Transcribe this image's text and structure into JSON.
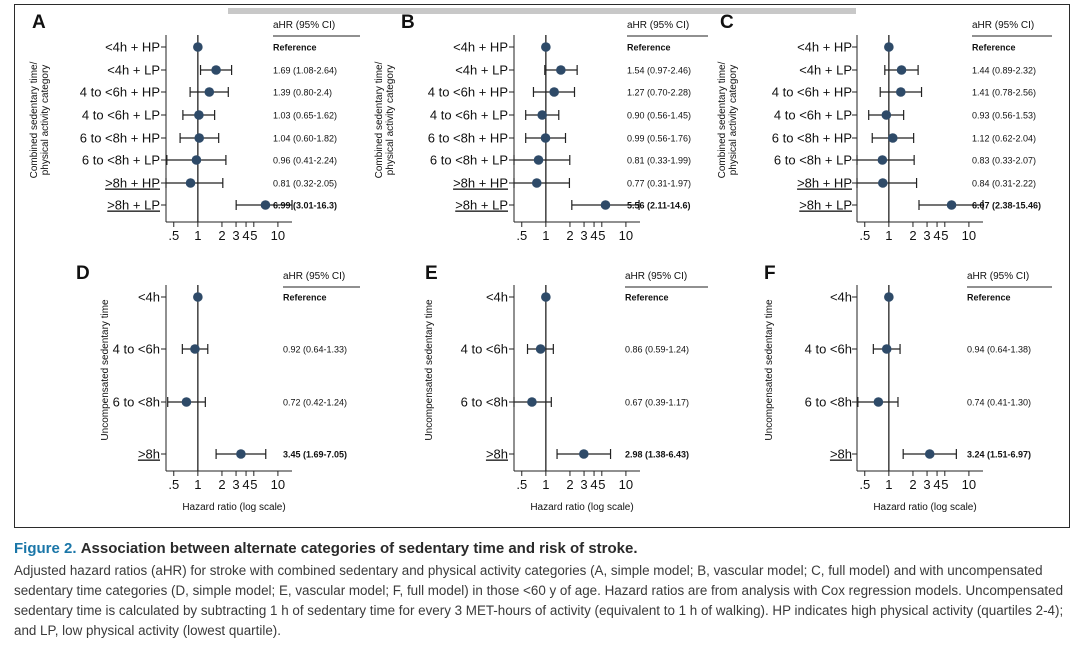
{
  "caption": {
    "figure_number": "Figure 2.",
    "title": "Association between alternate categories of sedentary time and risk of stroke.",
    "body": "Adjusted hazard ratios (aHR) for stroke with combined sedentary and physical activity categories (A, simple model; B, vascular model; C, full model) and with uncompensated sedentary time categories (D, simple model; E, vascular model; F, full model) in those <60 y of age. Hazard ratios are from analysis with Cox regression models. Uncompensated sedentary time is calculated by subtracting 1 h of sedentary time for every 3 MET-hours of activity (equivalent to 1 h of walking). HP indicates high physical activity (quartiles 2-4); and LP, low physical activity (lowest quartile)."
  },
  "colors": {
    "marker": "#2e4a68",
    "line": "#222222",
    "caption_accent": "#1a76a8"
  },
  "chart_data": [
    {
      "type": "forest",
      "panel": "A",
      "header": "aHR (95% CI)",
      "ylabel": "Combined sedentary time/ physical activity category",
      "xlabel": "",
      "xscale": "log",
      "xlim": [
        0.4,
        15
      ],
      "xticks": [
        0.5,
        1,
        2,
        3,
        4,
        5,
        10
      ],
      "xtick_labels": [
        ".5",
        "1",
        "2",
        "3",
        "4",
        "5",
        "10"
      ],
      "rows": [
        {
          "category": "<4h + HP",
          "hr": 1,
          "lo": 1,
          "hi": 1,
          "label": "Reference",
          "bold": true
        },
        {
          "category": "<4h + LP",
          "hr": 1.69,
          "lo": 1.08,
          "hi": 2.64,
          "label": "1.69 (1.08-2.64)",
          "bold": false
        },
        {
          "category": "4 to <6h + HP",
          "hr": 1.39,
          "lo": 0.8,
          "hi": 2.4,
          "label": "1.39 (0.80-2.4)",
          "bold": false
        },
        {
          "category": "4 to <6h + LP",
          "hr": 1.03,
          "lo": 0.65,
          "hi": 1.62,
          "label": "1.03 (0.65-1.62)",
          "bold": false
        },
        {
          "category": "6 to <8h + HP",
          "hr": 1.04,
          "lo": 0.6,
          "hi": 1.82,
          "label": "1.04 (0.60-1.82)",
          "bold": false
        },
        {
          "category": "6 to <8h + LP",
          "hr": 0.96,
          "lo": 0.41,
          "hi": 2.24,
          "label": "0.96 (0.41-2.24)",
          "bold": false
        },
        {
          "category": ">8h + HP",
          "hr": 0.81,
          "lo": 0.32,
          "hi": 2.05,
          "label": "0.81 (0.32-2.05)",
          "bold": false
        },
        {
          "category": ">8h + LP",
          "hr": 6.99,
          "lo": 3.01,
          "hi": 16.3,
          "label": "6.99 (3.01-16.3)",
          "bold": true
        }
      ]
    },
    {
      "type": "forest",
      "panel": "B",
      "header": "aHR (95% CI)",
      "ylabel": "Combined sedentary time/ physical activity category",
      "xlabel": "",
      "xscale": "log",
      "xlim": [
        0.4,
        15
      ],
      "xticks": [
        0.5,
        1,
        2,
        3,
        4,
        5,
        10
      ],
      "xtick_labels": [
        ".5",
        "1",
        "2",
        "3",
        "4",
        "5",
        "10"
      ],
      "rows": [
        {
          "category": "<4h + HP",
          "hr": 1,
          "lo": 1,
          "hi": 1,
          "label": "Reference",
          "bold": true
        },
        {
          "category": "<4h + LP",
          "hr": 1.54,
          "lo": 0.97,
          "hi": 2.46,
          "label": "1.54 (0.97-2.46)",
          "bold": false
        },
        {
          "category": "4 to <6h + HP",
          "hr": 1.27,
          "lo": 0.7,
          "hi": 2.28,
          "label": "1.27 (0.70-2.28)",
          "bold": false
        },
        {
          "category": "4 to <6h + LP",
          "hr": 0.9,
          "lo": 0.56,
          "hi": 1.45,
          "label": "0.90 (0.56-1.45)",
          "bold": false
        },
        {
          "category": "6 to <8h + HP",
          "hr": 0.99,
          "lo": 0.56,
          "hi": 1.76,
          "label": "0.99 (0.56-1.76)",
          "bold": false
        },
        {
          "category": "6 to <8h + LP",
          "hr": 0.81,
          "lo": 0.33,
          "hi": 1.99,
          "label": "0.81 (0.33-1.99)",
          "bold": false
        },
        {
          "category": ">8h + HP",
          "hr": 0.77,
          "lo": 0.31,
          "hi": 1.97,
          "label": "0.77 (0.31-1.97)",
          "bold": false
        },
        {
          "category": ">8h + LP",
          "hr": 5.56,
          "lo": 2.11,
          "hi": 14.6,
          "label": "5.56 (2.11-14.6)",
          "bold": true
        }
      ]
    },
    {
      "type": "forest",
      "panel": "C",
      "header": "aHR (95% CI)",
      "ylabel": "Combined sedentary time/ physical activity category",
      "xlabel": "",
      "xscale": "log",
      "xlim": [
        0.4,
        15
      ],
      "xticks": [
        0.5,
        1,
        2,
        3,
        4,
        5,
        10
      ],
      "xtick_labels": [
        ".5",
        "1",
        "2",
        "3",
        "4",
        "5",
        "10"
      ],
      "rows": [
        {
          "category": "<4h + HP",
          "hr": 1,
          "lo": 1,
          "hi": 1,
          "label": "Reference",
          "bold": true
        },
        {
          "category": "<4h + LP",
          "hr": 1.44,
          "lo": 0.89,
          "hi": 2.32,
          "label": "1.44 (0.89-2.32)",
          "bold": false
        },
        {
          "category": "4 to <6h + HP",
          "hr": 1.41,
          "lo": 0.78,
          "hi": 2.56,
          "label": "1.41 (0.78-2.56)",
          "bold": false
        },
        {
          "category": "4 to <6h + LP",
          "hr": 0.93,
          "lo": 0.56,
          "hi": 1.53,
          "label": "0.93 (0.56-1.53)",
          "bold": false
        },
        {
          "category": "6 to <8h + HP",
          "hr": 1.12,
          "lo": 0.62,
          "hi": 2.04,
          "label": "1.12 (0.62-2.04)",
          "bold": false
        },
        {
          "category": "6 to <8h + LP",
          "hr": 0.83,
          "lo": 0.33,
          "hi": 2.07,
          "label": "0.83 (0.33-2.07)",
          "bold": false
        },
        {
          "category": ">8h + HP",
          "hr": 0.84,
          "lo": 0.31,
          "hi": 2.22,
          "label": "0.84 (0.31-2.22)",
          "bold": false
        },
        {
          "category": ">8h + LP",
          "hr": 6.07,
          "lo": 2.38,
          "hi": 15.46,
          "label": "6.07 (2.38-15.46)",
          "bold": true
        }
      ]
    },
    {
      "type": "forest",
      "panel": "D",
      "header": "aHR (95% CI)",
      "ylabel": "Uncompensated sedentary time",
      "xlabel": "Hazard ratio (log scale)",
      "xscale": "log",
      "xlim": [
        0.4,
        15
      ],
      "xticks": [
        0.5,
        1,
        2,
        3,
        4,
        5,
        10
      ],
      "xtick_labels": [
        ".5",
        "1",
        "2",
        "3",
        "4",
        "5",
        "10"
      ],
      "rows": [
        {
          "category": "<4h",
          "hr": 1,
          "lo": 1,
          "hi": 1,
          "label": "Reference",
          "bold": true
        },
        {
          "category": "4 to <6h",
          "hr": 0.92,
          "lo": 0.64,
          "hi": 1.33,
          "label": "0.92 (0.64-1.33)",
          "bold": false
        },
        {
          "category": "6 to <8h",
          "hr": 0.72,
          "lo": 0.42,
          "hi": 1.24,
          "label": "0.72 (0.42-1.24)",
          "bold": false
        },
        {
          "category": ">8h",
          "hr": 3.45,
          "lo": 1.69,
          "hi": 7.05,
          "label": "3.45 (1.69-7.05)",
          "bold": true
        }
      ]
    },
    {
      "type": "forest",
      "panel": "E",
      "header": "aHR (95% CI)",
      "ylabel": "Uncompensated sedentary time",
      "xlabel": "Hazard ratio (log scale)",
      "xscale": "log",
      "xlim": [
        0.4,
        15
      ],
      "xticks": [
        0.5,
        1,
        2,
        3,
        4,
        5,
        10
      ],
      "xtick_labels": [
        ".5",
        "1",
        "2",
        "3",
        "4",
        "5",
        "10"
      ],
      "rows": [
        {
          "category": "<4h",
          "hr": 1,
          "lo": 1,
          "hi": 1,
          "label": "Reference",
          "bold": true
        },
        {
          "category": "4 to <6h",
          "hr": 0.86,
          "lo": 0.59,
          "hi": 1.24,
          "label": "0.86 (0.59-1.24)",
          "bold": false
        },
        {
          "category": "6 to <8h",
          "hr": 0.67,
          "lo": 0.39,
          "hi": 1.17,
          "label": "0.67 (0.39-1.17)",
          "bold": false
        },
        {
          "category": ">8h",
          "hr": 2.98,
          "lo": 1.38,
          "hi": 6.43,
          "label": "2.98 (1.38-6.43)",
          "bold": true
        }
      ]
    },
    {
      "type": "forest",
      "panel": "F",
      "header": "aHR (95% CI)",
      "ylabel": "Uncompensated sedentary time",
      "xlabel": "Hazard ratio (log scale)",
      "xscale": "log",
      "xlim": [
        0.4,
        15
      ],
      "xticks": [
        0.5,
        1,
        2,
        3,
        4,
        5,
        10
      ],
      "xtick_labels": [
        ".5",
        "1",
        "2",
        "3",
        "4",
        "5",
        "10"
      ],
      "rows": [
        {
          "category": "<4h",
          "hr": 1,
          "lo": 1,
          "hi": 1,
          "label": "Reference",
          "bold": true
        },
        {
          "category": "4 to <6h",
          "hr": 0.94,
          "lo": 0.64,
          "hi": 1.38,
          "label": "0.94 (0.64-1.38)",
          "bold": false
        },
        {
          "category": "6 to <8h",
          "hr": 0.74,
          "lo": 0.41,
          "hi": 1.3,
          "label": "0.74 (0.41-1.30)",
          "bold": false
        },
        {
          "category": ">8h",
          "hr": 3.24,
          "lo": 1.51,
          "hi": 6.97,
          "label": "3.24 (1.51-6.97)",
          "bold": true
        }
      ]
    }
  ]
}
